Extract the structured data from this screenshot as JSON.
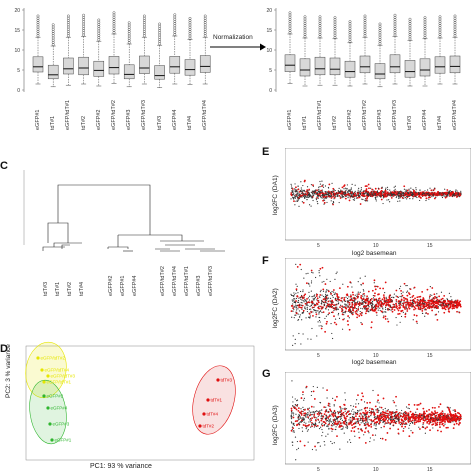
{
  "figure": {
    "norm_label": "Normalization",
    "panel_c_letter": "C",
    "panel_d_letter": "D",
    "panel_e_letter": "E",
    "panel_f_letter": "F",
    "panel_g_letter": "G"
  },
  "boxplot_samples": [
    "eGFP#1",
    "tdT#1",
    "eGFP/tdT#1",
    "tdT#2",
    "eGFP#2",
    "eGFP/tdT#2",
    "eGFP#3",
    "eGFP/tdT#3",
    "tdT#3",
    "eGFP#4",
    "tdT#4",
    "eGFP/tdT#4"
  ],
  "dendro_samples": [
    "tdT#3",
    "tdT#1",
    "tdT#2",
    "tdT#4",
    "eGFP#2",
    "eGFP#1",
    "eGFP#4",
    "eGFP/tdT#2",
    "eGFP/tdT#4",
    "eGFP/tdT#1",
    "eGFP#3",
    "eGFP/tdT#3"
  ],
  "pca": {
    "xlabel": "PC1: 93 % variance",
    "ylabel": "PC2: 3 % variance",
    "yellow_labels": [
      "eGFP/tdT#2",
      "eGFP/tdT#4",
      "eGFP/tdT#1",
      "eGFP/tdT#3"
    ],
    "green_labels": [
      "eGFP#2",
      "eGFP#4",
      "eGFP#3",
      "eGFP#1"
    ],
    "red_labels": [
      "tdT#3",
      "tdT#1",
      "tdT#4",
      "tdT#2"
    ]
  },
  "ma": {
    "xlabel": "log2 basemean",
    "ylabel_e": "log2FC (DA1)",
    "ylabel_f": "log2FC (DA2)",
    "ylabel_g": "log2FC (DA3)",
    "xticks": [
      "5",
      "10",
      "15"
    ]
  },
  "chart_data": [
    {
      "type": "box",
      "title": "",
      "ylim": [
        0,
        20
      ],
      "yticks": [
        0,
        5,
        10,
        15,
        20
      ],
      "categories": [
        "eGFP#1",
        "tdT#1",
        "eGFP/tdT#1",
        "tdT#2",
        "eGFP#2",
        "eGFP/tdT#2",
        "eGFP#3",
        "eGFP/tdT#3",
        "tdT#3",
        "eGFP#4",
        "tdT#4",
        "eGFP/tdT#4"
      ],
      "series": [
        {
          "values": [
            {
              "min": 1.5,
              "q1": 4.5,
              "median": 5.8,
              "q3": 8.3,
              "max": 13.2
            },
            {
              "min": 0.8,
              "q1": 2.8,
              "median": 3.8,
              "q3": 6.2,
              "max": 11.0
            },
            {
              "min": 1.2,
              "q1": 4.0,
              "median": 5.3,
              "q3": 8.0,
              "max": 13.2
            },
            {
              "min": 1.5,
              "q1": 3.8,
              "median": 5.5,
              "q3": 8.2,
              "max": 13.4
            },
            {
              "min": 1.0,
              "q1": 3.4,
              "median": 4.9,
              "q3": 7.2,
              "max": 12.2
            },
            {
              "min": 1.6,
              "q1": 4.0,
              "median": 5.6,
              "q3": 8.4,
              "max": 14.0
            },
            {
              "min": 0.8,
              "q1": 2.8,
              "median": 3.9,
              "q3": 6.3,
              "max": 11.5
            },
            {
              "min": 1.5,
              "q1": 4.1,
              "median": 5.5,
              "q3": 8.5,
              "max": 13.2
            },
            {
              "min": 0.6,
              "q1": 2.7,
              "median": 3.6,
              "q3": 6.1,
              "max": 11.2
            },
            {
              "min": 1.5,
              "q1": 4.2,
              "median": 5.8,
              "q3": 8.4,
              "max": 13.5
            },
            {
              "min": 1.4,
              "q1": 3.7,
              "median": 5.1,
              "q3": 7.6,
              "max": 12.6
            },
            {
              "min": 1.5,
              "q1": 4.4,
              "median": 5.9,
              "q3": 8.6,
              "max": 13.2
            }
          ]
        }
      ]
    },
    {
      "type": "box",
      "title": "",
      "ylim": [
        0,
        20
      ],
      "yticks": [
        0,
        5,
        10,
        15,
        20
      ],
      "categories": [
        "eGFP#1",
        "tdT#1",
        "eGFP/tdT#1",
        "tdT#2",
        "eGFP#2",
        "eGFP/tdT#2",
        "eGFP#3",
        "eGFP/tdT#3",
        "tdT#3",
        "eGFP#4",
        "tdT#4",
        "eGFP/tdT#4"
      ],
      "series": [
        {
          "values": [
            {
              "min": 1.6,
              "q1": 4.6,
              "median": 6.2,
              "q3": 8.8,
              "max": 14.0
            },
            {
              "min": 1.0,
              "q1": 3.5,
              "median": 5.0,
              "q3": 7.8,
              "max": 13.0
            },
            {
              "min": 1.2,
              "q1": 3.8,
              "median": 5.3,
              "q3": 8.2,
              "max": 13.0
            },
            {
              "min": 1.2,
              "q1": 3.8,
              "median": 5.2,
              "q3": 8.0,
              "max": 12.8
            },
            {
              "min": 1.0,
              "q1": 3.2,
              "median": 4.6,
              "q3": 7.2,
              "max": 11.8
            },
            {
              "min": 1.5,
              "q1": 4.3,
              "median": 5.8,
              "q3": 8.5,
              "max": 13.2
            },
            {
              "min": 0.8,
              "q1": 2.8,
              "median": 4.0,
              "q3": 6.6,
              "max": 11.2
            },
            {
              "min": 1.5,
              "q1": 4.3,
              "median": 5.8,
              "q3": 8.8,
              "max": 13.4
            },
            {
              "min": 1.0,
              "q1": 3.2,
              "median": 4.6,
              "q3": 7.4,
              "max": 12.4
            },
            {
              "min": 1.0,
              "q1": 3.5,
              "median": 5.0,
              "q3": 7.8,
              "max": 12.8
            },
            {
              "min": 1.5,
              "q1": 4.2,
              "median": 5.8,
              "q3": 8.3,
              "max": 13.0
            },
            {
              "min": 1.5,
              "q1": 4.3,
              "median": 5.9,
              "q3": 8.5,
              "max": 13.2
            }
          ]
        }
      ]
    }
  ],
  "colors": {
    "box_fill": "#d8d8d8",
    "red": "#e01010",
    "grey_pts": "#333333",
    "yellow": "#e6e600",
    "green": "#2fb52f",
    "pink": "#f3c3c3"
  }
}
